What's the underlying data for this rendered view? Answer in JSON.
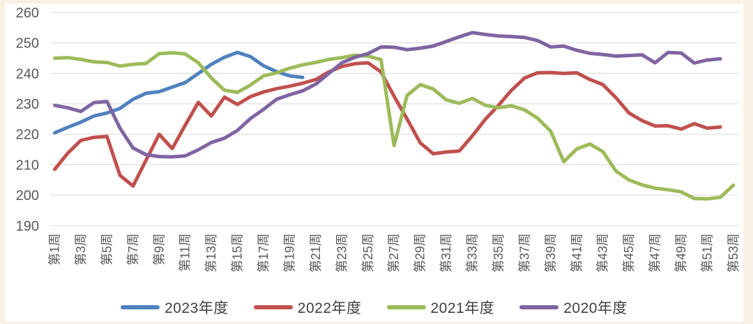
{
  "chart_data": {
    "type": "line",
    "title": "",
    "x_axis": {
      "category_format": "第{n}周",
      "weeks_total": 53,
      "labeled_weeks": [
        1,
        3,
        5,
        7,
        9,
        11,
        13,
        15,
        17,
        19,
        21,
        23,
        25,
        27,
        29,
        31,
        33,
        35,
        37,
        39,
        41,
        43,
        45,
        47,
        49,
        51,
        53
      ],
      "tick_labels": [
        "第1周",
        "第3周",
        "第5周",
        "第7周",
        "第9周",
        "第11周",
        "第13周",
        "第15周",
        "第17周",
        "第19周",
        "第21周",
        "第23周",
        "第25周",
        "第27周",
        "第29周",
        "第31周",
        "第33周",
        "第35周",
        "第37周",
        "第39周",
        "第41周",
        "第43周",
        "第45周",
        "第47周",
        "第49周",
        "第51周",
        "第53周"
      ],
      "label_rotation_deg": -90
    },
    "y_axis": {
      "min": 190,
      "max": 260,
      "step": 10,
      "ticks": [
        190,
        200,
        210,
        220,
        230,
        240,
        250,
        260
      ]
    },
    "grid": true,
    "grid_color": "#d9d9d9",
    "axis_text_color": "#595959",
    "legend": {
      "position": "bottom",
      "entries": [
        "2023年度",
        "2022年度",
        "2021年度",
        "2020年度"
      ]
    },
    "series": [
      {
        "name": "2023年度",
        "color": "#4F81BD",
        "start_week": 1,
        "values": [
          220.5,
          222.3,
          224,
          226,
          227,
          228.5,
          231.5,
          233.5,
          234,
          235.5,
          237,
          240,
          243,
          245.3,
          246.9,
          245.5,
          242.5,
          240.6,
          239.2,
          238.7
        ]
      },
      {
        "name": "2022年度",
        "color": "#C0504D",
        "start_week": 1,
        "values": [
          208.5,
          213.8,
          218,
          219,
          219.3,
          206.5,
          203,
          211.5,
          220,
          215.3,
          223,
          230.5,
          226,
          232.2,
          229.8,
          232.4,
          233.9,
          235,
          235.8,
          236.8,
          238,
          240.5,
          242.3,
          243.2,
          243.5,
          240.5,
          232.5,
          225,
          217.2,
          213.6,
          214.2,
          214.5,
          219.5,
          225,
          229.5,
          234.5,
          238.5,
          240.2,
          240.3,
          240,
          240.2,
          238,
          236.3,
          232,
          227,
          224.5,
          222.7,
          222.8,
          221.7,
          223.5,
          222,
          222.4
        ]
      },
      {
        "name": "2021年度",
        "color": "#9BBB59",
        "start_week": 1,
        "values": [
          245,
          245.2,
          244.6,
          243.8,
          243.6,
          242.4,
          243,
          243.3,
          246.5,
          246.8,
          246.4,
          243.5,
          238.5,
          234.5,
          233.8,
          236.2,
          239.2,
          240.2,
          241.7,
          242.8,
          243.6,
          244.6,
          245.2,
          246,
          245.7,
          244.5,
          216.3,
          232.8,
          236.3,
          234.9,
          231.3,
          230.2,
          231.8,
          229.5,
          228.7,
          229.4,
          228,
          225.3,
          221,
          211,
          215.2,
          216.8,
          214.3,
          207.9,
          205,
          203.4,
          202.3,
          201.8,
          201.1,
          198.9,
          198.8,
          199.3,
          203.3
        ]
      },
      {
        "name": "2020年度",
        "color": "#8064A2",
        "start_week": 1,
        "values": [
          229.5,
          228.7,
          227.5,
          230.4,
          230.8,
          222,
          215.5,
          213.3,
          212.7,
          212.6,
          212.9,
          214.9,
          217.3,
          218.7,
          221.3,
          225.2,
          228.2,
          231.5,
          233,
          234.3,
          236.5,
          240,
          243.5,
          245.3,
          246.5,
          248.7,
          248.6,
          247.8,
          248.3,
          249,
          250.5,
          252,
          253.4,
          252.8,
          252.3,
          252.1,
          251.8,
          250.8,
          248.7,
          249,
          247.6,
          246.6,
          246.2,
          245.7,
          245.9,
          246.1,
          243.5,
          246.9,
          246.7,
          243.4,
          244.4,
          244.8
        ]
      }
    ],
    "line_width": 5
  }
}
